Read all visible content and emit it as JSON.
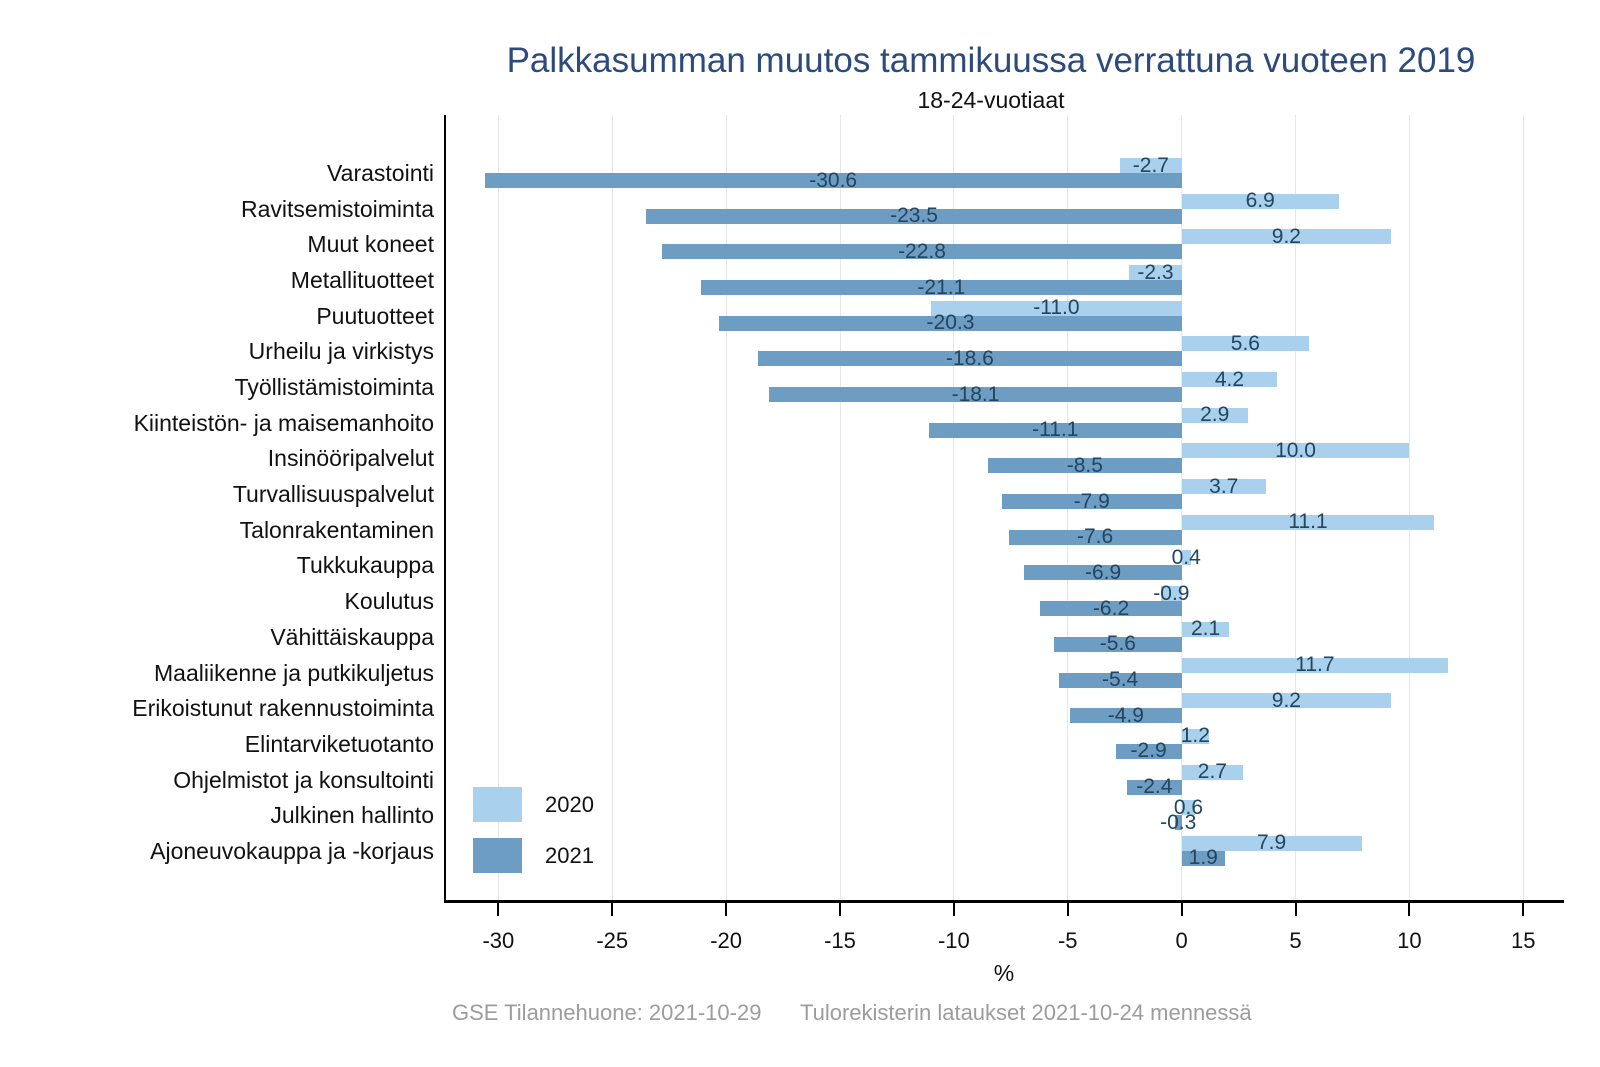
{
  "title": "Palkkasumman muutos tammikuussa verrattuna vuoteen 2019",
  "subtitle": "18-24-vuotiaat",
  "footer": {
    "left": "GSE Tilannehuone: 2021-10-29",
    "right": "Tulorekisterin lataukset 2021-10-24 mennessä"
  },
  "colors": {
    "bar_2020": "#a9d1ed",
    "bar_2021": "#6d9dc3",
    "title": "#2c4a7c",
    "value_label": "#23455f",
    "grid": "#e7e7e7",
    "axis": "#000000",
    "footer_text": "#9c9c9c"
  },
  "chart_data": {
    "type": "bar",
    "orientation": "horizontal",
    "title": "Palkkasumman muutos tammikuussa verrattuna vuoteen 2019",
    "subtitle": "18-24-vuotiaat",
    "xlabel": "%",
    "ylabel": "",
    "xlim": [
      -32.3,
      16.7
    ],
    "xticks": [
      -30,
      -25,
      -20,
      -15,
      -10,
      -5,
      0,
      5,
      10,
      15
    ],
    "grid": true,
    "legend_position": "bottom-left-inside",
    "categories": [
      "Varastointi",
      "Ravitsemistoiminta",
      "Muut koneet",
      "Metallituotteet",
      "Puutuotteet",
      "Urheilu ja virkistys",
      "Työllistämistoiminta",
      "Kiinteistön- ja maisemanhoito",
      "Insinööripalvelut",
      "Turvallisuuspalvelut",
      "Talonrakentaminen",
      "Tukkukauppa",
      "Koulutus",
      "Vähittäiskauppa",
      "Maaliikenne ja putkikuljetus",
      "Erikoistunut rakennustoiminta",
      "Elintarviketuotanto",
      "Ohjelmistot ja konsultointi",
      "Julkinen hallinto",
      "Ajoneuvokauppa ja -korjaus"
    ],
    "series": [
      {
        "name": "2020",
        "color": "#a9d1ed",
        "values": [
          -2.7,
          6.9,
          9.2,
          -2.3,
          -11.0,
          5.6,
          4.2,
          2.9,
          10.0,
          3.7,
          11.1,
          0.4,
          -0.9,
          2.1,
          11.7,
          9.2,
          1.2,
          2.7,
          0.6,
          7.9
        ]
      },
      {
        "name": "2021",
        "color": "#6d9dc3",
        "values": [
          -30.6,
          -23.5,
          -22.8,
          -21.1,
          -20.3,
          -18.6,
          -18.1,
          -11.1,
          -8.5,
          -7.9,
          -7.6,
          -6.9,
          -6.2,
          -5.6,
          -5.4,
          -4.9,
          -2.9,
          -2.4,
          -0.3,
          1.9
        ]
      }
    ]
  }
}
